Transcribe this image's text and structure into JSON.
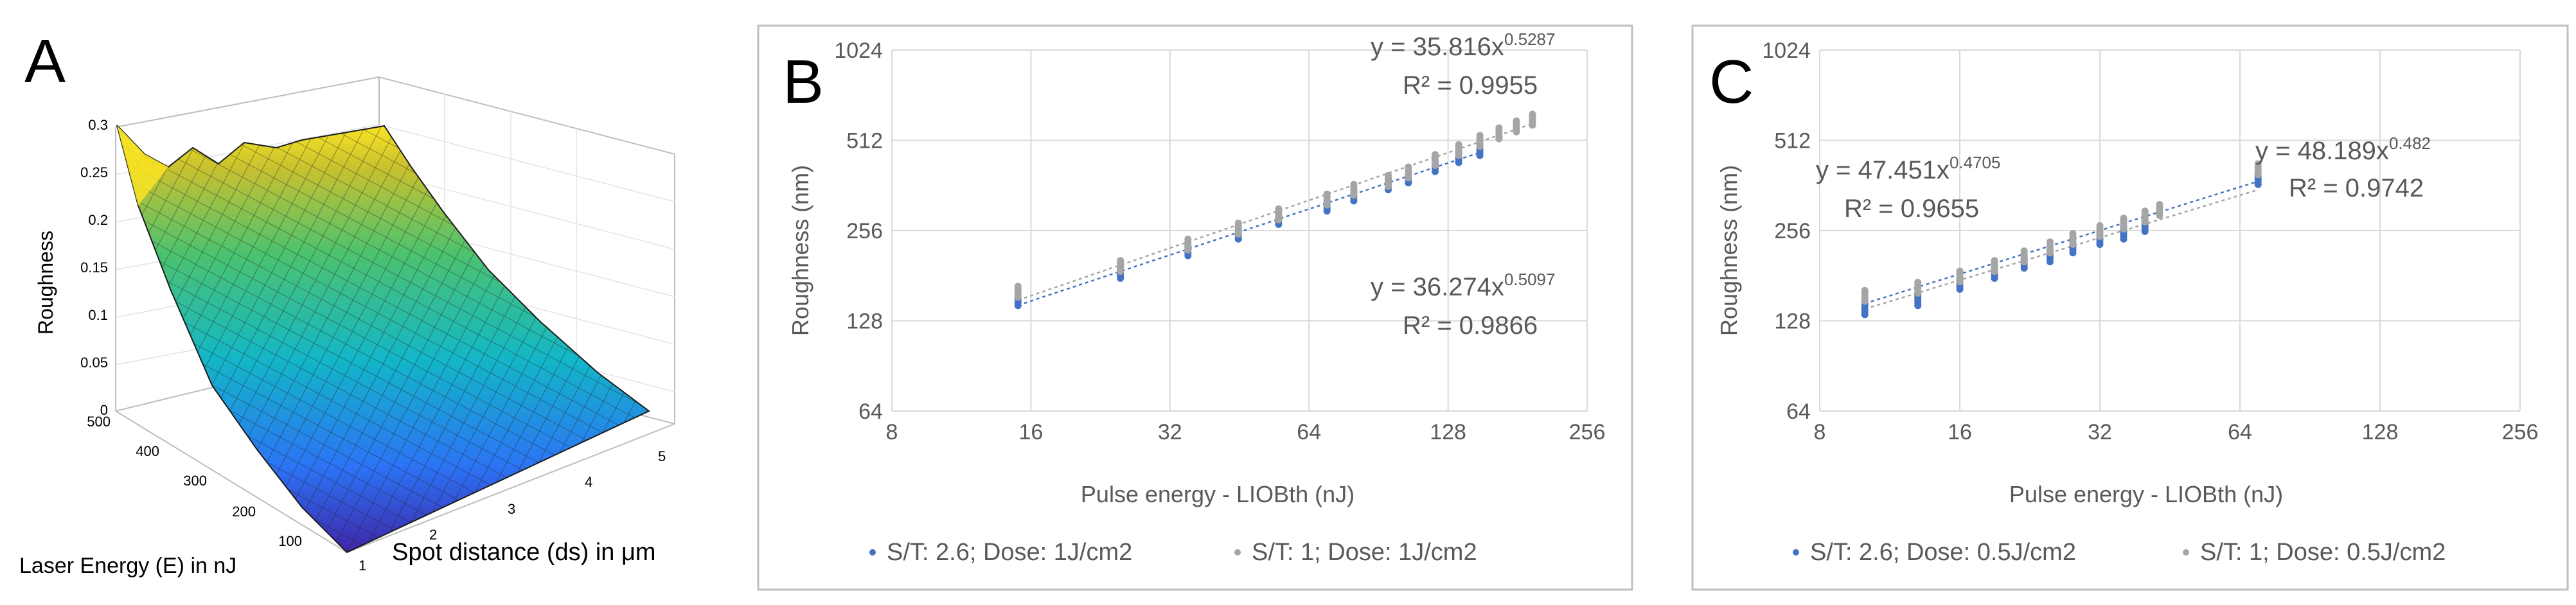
{
  "colors": {
    "blue": "#4472C4",
    "gray": "#A5A5A5",
    "grid": "#D9D9D9",
    "text": "#595959",
    "panel_border": "#BFBFBF"
  },
  "chart_data": [
    {
      "panel": "A",
      "type": "surface",
      "zlabel": "Roughness",
      "xlabel": "Laser Energy (E) in nJ",
      "ylabel": "Spot distance (ds) in μm",
      "z_ticks": [
        "0",
        "0.05",
        "0.1",
        "0.15",
        "0.2",
        "0.25",
        "0.3"
      ],
      "energy_ticks": [
        "500",
        "400",
        "300",
        "200",
        "100"
      ],
      "distance_ticks": [
        "1",
        "2",
        "3",
        "4",
        "5"
      ],
      "zlim": [
        0,
        0.3
      ],
      "colormap": "parula"
    },
    {
      "panel": "B",
      "type": "scatter",
      "scale": "log2",
      "xlabel": "Pulse energy - LIOBth (nJ)",
      "ylabel": "Roughness (nm)",
      "x_ticks": [
        "8",
        "16",
        "32",
        "64",
        "128",
        "256"
      ],
      "y_ticks": [
        "64",
        "128",
        "256",
        "512",
        "1024"
      ],
      "xlim": [
        8,
        256
      ],
      "ylim": [
        64,
        1024
      ],
      "series": [
        {
          "name": "S/T: 2.6; Dose: 1J/cm2",
          "color": "blue",
          "x": [
            15,
            25,
            35,
            45,
            55,
            70,
            80,
            95,
            105,
            120,
            135,
            150
          ],
          "y": [
            150,
            185,
            220,
            250,
            280,
            310,
            335,
            365,
            385,
            420,
            450,
            475
          ]
        },
        {
          "name": "S/T: 1; Dose: 1J/cm2",
          "color": "gray",
          "x": [
            15,
            25,
            35,
            45,
            55,
            70,
            80,
            95,
            105,
            120,
            135,
            150,
            165,
            180,
            195
          ],
          "y": [
            160,
            195,
            230,
            260,
            290,
            325,
            350,
            375,
            400,
            440,
            475,
            510,
            540,
            570,
            600
          ]
        }
      ],
      "annotations": [
        {
          "equation": "y = 35.816x",
          "exponent": "0.5287",
          "r2": "R² = 0.9955"
        },
        {
          "equation": "y = 36.274x",
          "exponent": "0.5097",
          "r2": "R² = 0.9866"
        }
      ],
      "trendlines": [
        {
          "a": 35.816,
          "b": 0.5287,
          "x": [
            15,
            195
          ]
        },
        {
          "a": 36.274,
          "b": 0.5097,
          "x": [
            15,
            150
          ]
        }
      ]
    },
    {
      "panel": "C",
      "type": "scatter",
      "scale": "log2",
      "xlabel": "Pulse energy - LIOBth (nJ)",
      "ylabel": "Roughness (nm)",
      "x_ticks": [
        "8",
        "16",
        "32",
        "64",
        "128",
        "256"
      ],
      "y_ticks": [
        "64",
        "128",
        "256",
        "512",
        "1024"
      ],
      "xlim": [
        8,
        256
      ],
      "ylim": [
        64,
        1024
      ],
      "series": [
        {
          "name": "S/T: 2.6; Dose: 0.5J/cm2",
          "color": "blue",
          "x": [
            10,
            13,
            16,
            19,
            22,
            25,
            28,
            32,
            36,
            40,
            70
          ],
          "y": [
            140,
            150,
            170,
            185,
            200,
            210,
            225,
            240,
            250,
            265,
            380
          ]
        },
        {
          "name": "S/T: 1; Dose: 0.5J/cm2",
          "color": "gray",
          "x": [
            10,
            13,
            16,
            19,
            22,
            25,
            28,
            32,
            36,
            40,
            43,
            70
          ],
          "y": [
            155,
            165,
            180,
            195,
            210,
            225,
            240,
            255,
            270,
            285,
            300,
            410
          ]
        }
      ],
      "annotations": [
        {
          "equation": "y = 47.451x",
          "exponent": "0.4705",
          "r2": "R² = 0.9655"
        },
        {
          "equation": "y = 48.189x",
          "exponent": "0.482",
          "r2": "R² = 0.9742"
        }
      ],
      "trendlines": [
        {
          "a": 47.451,
          "b": 0.4705,
          "x": [
            10,
            70
          ]
        },
        {
          "a": 48.189,
          "b": 0.482,
          "x": [
            10,
            70
          ]
        }
      ]
    }
  ]
}
